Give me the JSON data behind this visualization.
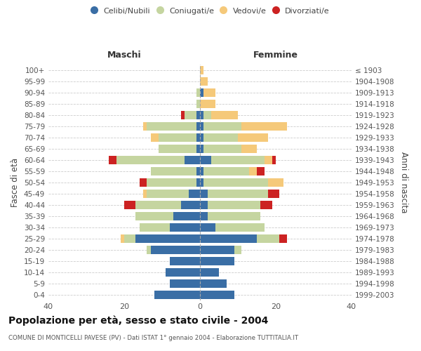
{
  "age_groups": [
    "0-4",
    "5-9",
    "10-14",
    "15-19",
    "20-24",
    "25-29",
    "30-34",
    "35-39",
    "40-44",
    "45-49",
    "50-54",
    "55-59",
    "60-64",
    "65-69",
    "70-74",
    "75-79",
    "80-84",
    "85-89",
    "90-94",
    "95-99",
    "100+"
  ],
  "birth_years": [
    "1999-2003",
    "1994-1998",
    "1989-1993",
    "1984-1988",
    "1979-1983",
    "1974-1978",
    "1969-1973",
    "1964-1968",
    "1959-1963",
    "1954-1958",
    "1949-1953",
    "1944-1948",
    "1939-1943",
    "1934-1938",
    "1929-1933",
    "1924-1928",
    "1919-1923",
    "1914-1918",
    "1909-1913",
    "1904-1908",
    "≤ 1903"
  ],
  "colors": {
    "celibi": "#3a6ea5",
    "coniugati": "#c5d5a0",
    "vedovi": "#f5c97a",
    "divorziati": "#cc2222"
  },
  "males": {
    "celibi": [
      12,
      8,
      9,
      8,
      13,
      17,
      8,
      7,
      5,
      3,
      1,
      1,
      4,
      1,
      1,
      1,
      1,
      0,
      0,
      0,
      0
    ],
    "coniugati": [
      0,
      0,
      0,
      0,
      1,
      3,
      8,
      10,
      12,
      11,
      13,
      12,
      18,
      10,
      10,
      13,
      3,
      1,
      1,
      0,
      0
    ],
    "vedovi": [
      0,
      0,
      0,
      0,
      0,
      1,
      0,
      0,
      0,
      1,
      0,
      0,
      0,
      0,
      2,
      1,
      0,
      0,
      0,
      0,
      0
    ],
    "divorziati": [
      0,
      0,
      0,
      0,
      0,
      0,
      0,
      0,
      3,
      0,
      2,
      0,
      2,
      0,
      0,
      0,
      1,
      0,
      0,
      0,
      0
    ]
  },
  "females": {
    "celibi": [
      9,
      7,
      5,
      9,
      9,
      15,
      4,
      2,
      2,
      2,
      1,
      1,
      3,
      1,
      1,
      1,
      1,
      0,
      1,
      0,
      0
    ],
    "coniugati": [
      0,
      0,
      0,
      0,
      2,
      6,
      13,
      14,
      14,
      16,
      17,
      12,
      14,
      10,
      9,
      10,
      2,
      0,
      0,
      0,
      0
    ],
    "vedovi": [
      0,
      0,
      0,
      0,
      0,
      0,
      0,
      0,
      0,
      0,
      4,
      2,
      2,
      4,
      8,
      12,
      7,
      4,
      3,
      2,
      1
    ],
    "divorziati": [
      0,
      0,
      0,
      0,
      0,
      2,
      0,
      0,
      3,
      3,
      0,
      2,
      1,
      0,
      0,
      0,
      0,
      0,
      0,
      0,
      0
    ]
  },
  "xlim": 40,
  "title": "Popolazione per età, sesso e stato civile - 2004",
  "subtitle": "COMUNE DI MONTICELLI PAVESE (PV) - Dati ISTAT 1° gennaio 2004 - Elaborazione TUTTITALIA.IT",
  "ylabel_left": "Fasce di età",
  "ylabel_right": "Anni di nascita",
  "header_left": "Maschi",
  "header_right": "Femmine",
  "legend_labels": [
    "Celibi/Nubili",
    "Coniugati/e",
    "Vedovi/e",
    "Divorziati/e"
  ]
}
